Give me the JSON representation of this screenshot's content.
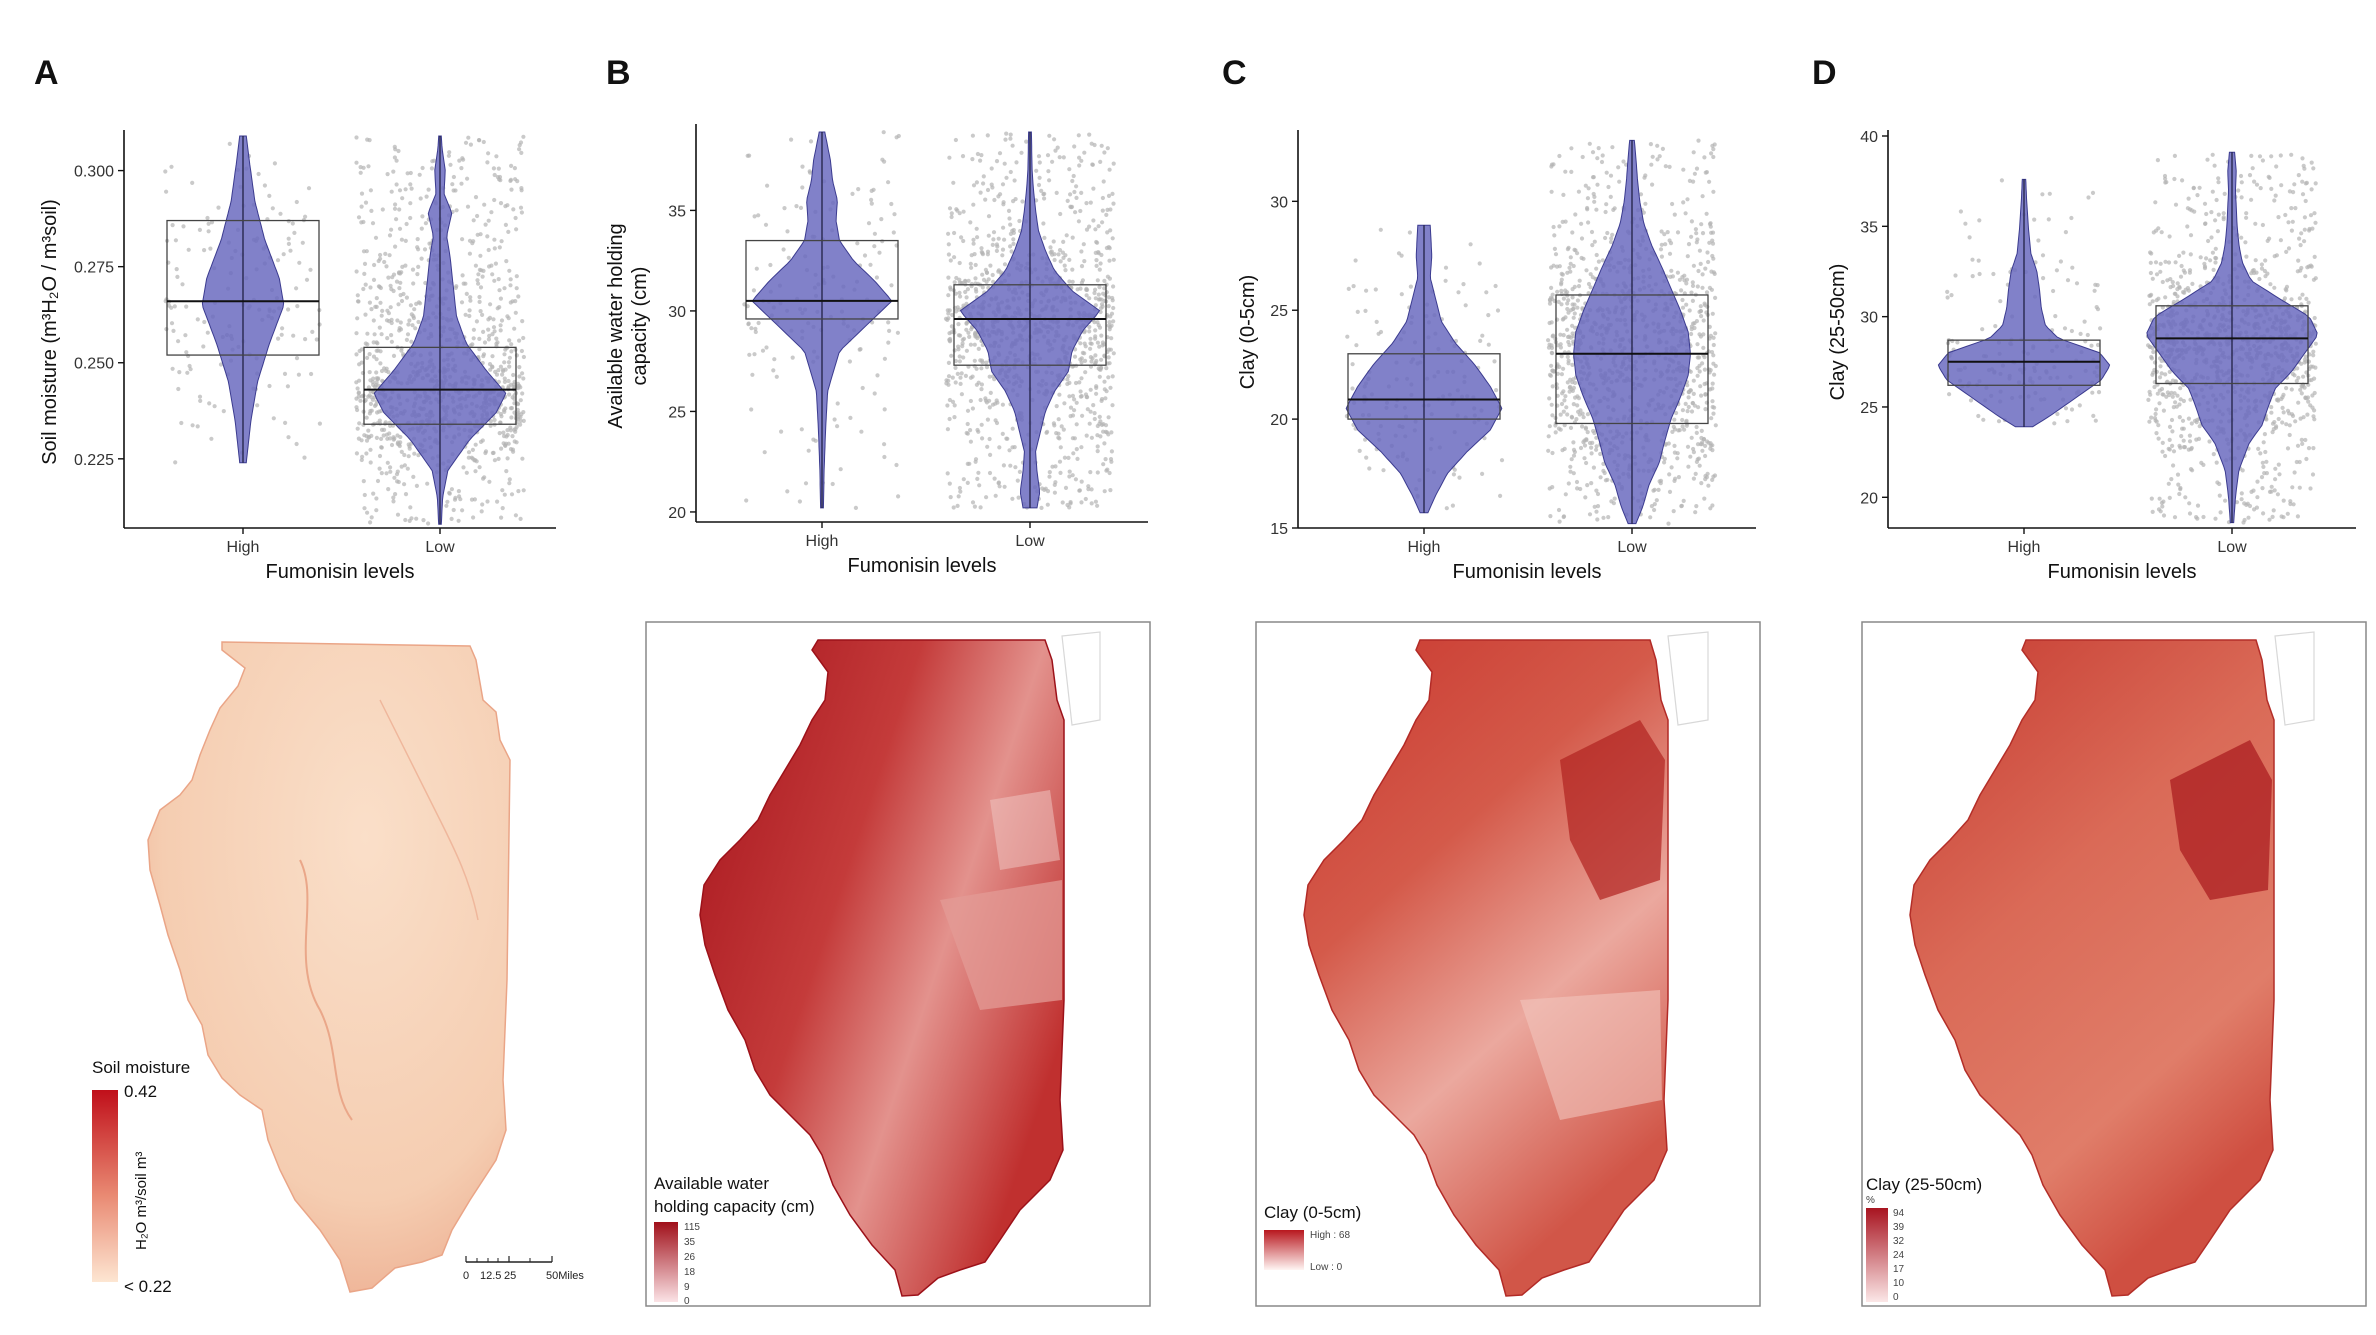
{
  "figure": {
    "panels": [
      "A",
      "B",
      "C",
      "D"
    ]
  },
  "chart_data": [
    {
      "type": "violin",
      "panel": "A",
      "xlabel": "Fumonisin levels",
      "ylabel": "Soil moisture (m³H₂O / m³soil)",
      "categories": [
        "High",
        "Low"
      ],
      "ylim": [
        0.207,
        0.309
      ],
      "yticks": [
        "0.225",
        "0.250",
        "0.275",
        "0.300"
      ],
      "ytick_values": [
        0.225,
        0.25,
        0.275,
        0.3
      ],
      "violin_color": "#6b6bbf",
      "series": [
        {
          "category": "High",
          "min": 0.224,
          "max": 0.309,
          "q1": 0.252,
          "median": 0.266,
          "q3": 0.287,
          "mode": 0.266,
          "profile": [
            [
              0.224,
              0.05
            ],
            [
              0.235,
              0.12
            ],
            [
              0.245,
              0.22
            ],
            [
              0.255,
              0.4
            ],
            [
              0.265,
              0.62
            ],
            [
              0.272,
              0.55
            ],
            [
              0.282,
              0.33
            ],
            [
              0.292,
              0.18
            ],
            [
              0.302,
              0.1
            ],
            [
              0.309,
              0.05
            ]
          ]
        },
        {
          "category": "Low",
          "min": 0.208,
          "max": 0.309,
          "q1": 0.234,
          "median": 0.243,
          "q3": 0.254,
          "mode": 0.242,
          "profile": [
            [
              0.208,
              0.02
            ],
            [
              0.215,
              0.04
            ],
            [
              0.222,
              0.12
            ],
            [
              0.23,
              0.45
            ],
            [
              0.237,
              0.85
            ],
            [
              0.242,
              1.0
            ],
            [
              0.248,
              0.7
            ],
            [
              0.255,
              0.4
            ],
            [
              0.262,
              0.25
            ],
            [
              0.27,
              0.2
            ],
            [
              0.278,
              0.15
            ],
            [
              0.283,
              0.1
            ],
            [
              0.289,
              0.18
            ],
            [
              0.294,
              0.06
            ],
            [
              0.3,
              0.08
            ],
            [
              0.306,
              0.03
            ],
            [
              0.309,
              0.02
            ]
          ]
        }
      ]
    },
    {
      "type": "violin",
      "panel": "B",
      "xlabel": "Fumonisin levels",
      "ylabel": "Available water holding capacity (cm)",
      "ylabel_lines": [
        "Available water holding",
        "capacity (cm)"
      ],
      "categories": [
        "High",
        "Low"
      ],
      "ylim": [
        19.5,
        39.0
      ],
      "yticks": [
        "20",
        "25",
        "30",
        "35"
      ],
      "ytick_values": [
        20,
        25,
        30,
        35
      ],
      "violin_color": "#6b6bbf",
      "series": [
        {
          "category": "High",
          "min": 20.2,
          "max": 38.9,
          "q1": 29.6,
          "median": 30.5,
          "q3": 33.5,
          "mode": 30.5,
          "profile": [
            [
              20.2,
              0.02
            ],
            [
              22,
              0.03
            ],
            [
              24,
              0.05
            ],
            [
              26,
              0.08
            ],
            [
              28,
              0.25
            ],
            [
              29.5,
              0.7
            ],
            [
              30.5,
              1.0
            ],
            [
              31.5,
              0.75
            ],
            [
              32.5,
              0.45
            ],
            [
              33.5,
              0.25
            ],
            [
              34.5,
              0.2
            ],
            [
              35.5,
              0.22
            ],
            [
              36.5,
              0.15
            ],
            [
              37.5,
              0.12
            ],
            [
              38.9,
              0.04
            ]
          ]
        },
        {
          "category": "Low",
          "min": 20.2,
          "max": 38.9,
          "q1": 27.3,
          "median": 29.6,
          "q3": 31.3,
          "mode": 30.0,
          "profile": [
            [
              20.2,
              0.1
            ],
            [
              21,
              0.14
            ],
            [
              22,
              0.1
            ],
            [
              23,
              0.08
            ],
            [
              24,
              0.15
            ],
            [
              25,
              0.22
            ],
            [
              26,
              0.35
            ],
            [
              27,
              0.55
            ],
            [
              28,
              0.6
            ],
            [
              29,
              0.75
            ],
            [
              30,
              1.0
            ],
            [
              31,
              0.6
            ],
            [
              32,
              0.35
            ],
            [
              33,
              0.22
            ],
            [
              34,
              0.12
            ],
            [
              35,
              0.08
            ],
            [
              36,
              0.05
            ],
            [
              37,
              0.03
            ],
            [
              38.9,
              0.02
            ]
          ]
        }
      ]
    },
    {
      "type": "violin",
      "panel": "C",
      "xlabel": "Fumonisin levels",
      "ylabel": "Clay (0-5cm)",
      "categories": [
        "High",
        "Low"
      ],
      "ylim": [
        15.0,
        33.0
      ],
      "yticks": [
        "15",
        "20",
        "25",
        "30"
      ],
      "ytick_values": [
        15,
        20,
        25,
        30
      ],
      "violin_color": "#6b6bbf",
      "series": [
        {
          "category": "High",
          "min": 15.7,
          "max": 28.9,
          "q1": 20.0,
          "median": 20.9,
          "q3": 23.0,
          "mode": 21.0,
          "profile": [
            [
              15.7,
              0.05
            ],
            [
              16.5,
              0.15
            ],
            [
              17.5,
              0.3
            ],
            [
              18.5,
              0.55
            ],
            [
              19.5,
              0.85
            ],
            [
              20.5,
              1.0
            ],
            [
              21.5,
              0.85
            ],
            [
              22.5,
              0.65
            ],
            [
              23.5,
              0.4
            ],
            [
              24.5,
              0.22
            ],
            [
              25.5,
              0.15
            ],
            [
              26.5,
              0.08
            ],
            [
              27.5,
              0.1
            ],
            [
              28.9,
              0.08
            ]
          ]
        },
        {
          "category": "Low",
          "min": 15.2,
          "max": 32.8,
          "q1": 19.8,
          "median": 23.0,
          "q3": 25.7,
          "mode": 23.0,
          "profile": [
            [
              15.2,
              0.05
            ],
            [
              16,
              0.14
            ],
            [
              17,
              0.22
            ],
            [
              18,
              0.35
            ],
            [
              19,
              0.42
            ],
            [
              20,
              0.5
            ],
            [
              21,
              0.62
            ],
            [
              22,
              0.72
            ],
            [
              23,
              0.75
            ],
            [
              24,
              0.72
            ],
            [
              25,
              0.62
            ],
            [
              26,
              0.5
            ],
            [
              27,
              0.38
            ],
            [
              28,
              0.25
            ],
            [
              29,
              0.15
            ],
            [
              30,
              0.1
            ],
            [
              31,
              0.07
            ],
            [
              32,
              0.05
            ],
            [
              32.8,
              0.03
            ]
          ]
        }
      ]
    },
    {
      "type": "violin",
      "panel": "D",
      "xlabel": "Fumonisin levels",
      "ylabel": "Clay (25-50cm)",
      "categories": [
        "High",
        "Low"
      ],
      "ylim": [
        18.3,
        40.0
      ],
      "yticks": [
        "20",
        "25",
        "30",
        "35",
        "40"
      ],
      "ytick_values": [
        20,
        25,
        30,
        35,
        40
      ],
      "violin_color": "#6b6bbf",
      "series": [
        {
          "category": "High",
          "min": 23.9,
          "max": 37.6,
          "q1": 26.2,
          "median": 27.5,
          "q3": 28.7,
          "mode": 27.3,
          "profile": [
            [
              23.9,
              0.1
            ],
            [
              24.5,
              0.3
            ],
            [
              25.5,
              0.6
            ],
            [
              26.5,
              0.9
            ],
            [
              27.3,
              1.0
            ],
            [
              28,
              0.88
            ],
            [
              28.8,
              0.4
            ],
            [
              29.5,
              0.25
            ],
            [
              30.5,
              0.2
            ],
            [
              31.5,
              0.18
            ],
            [
              32.5,
              0.15
            ],
            [
              33.5,
              0.08
            ],
            [
              35,
              0.05
            ],
            [
              36.5,
              0.03
            ],
            [
              37.6,
              0.02
            ]
          ]
        },
        {
          "category": "Low",
          "min": 18.6,
          "max": 39.1,
          "q1": 26.3,
          "median": 28.8,
          "q3": 30.6,
          "mode": 29.0,
          "profile": [
            [
              18.6,
              0.02
            ],
            [
              20,
              0.04
            ],
            [
              21.5,
              0.08
            ],
            [
              23,
              0.2
            ],
            [
              24,
              0.35
            ],
            [
              25,
              0.42
            ],
            [
              26,
              0.5
            ],
            [
              27,
              0.7
            ],
            [
              28,
              0.85
            ],
            [
              29,
              1.0
            ],
            [
              30,
              0.9
            ],
            [
              31,
              0.55
            ],
            [
              32,
              0.22
            ],
            [
              33,
              0.12
            ],
            [
              34,
              0.08
            ],
            [
              35,
              0.06
            ],
            [
              36,
              0.05
            ],
            [
              37,
              0.04
            ],
            [
              38,
              0.05
            ],
            [
              39.1,
              0.03
            ]
          ]
        }
      ]
    }
  ],
  "maps": [
    {
      "panel": "A",
      "legend": {
        "title": "Soil moisture",
        "max_label": "0.42",
        "min_label": "< 0.22",
        "unit_label": "H₂O m³/soil m³"
      },
      "scale_bar": {
        "labels": [
          "0",
          "12.5",
          "25",
          "50Miles"
        ]
      },
      "colors": {
        "low": "#fbe6d5",
        "high": "#c00f1a",
        "fill": "#f5cdb3"
      },
      "framed": false
    },
    {
      "panel": "B",
      "legend": {
        "title_lines": [
          "Available water",
          "holding capacity (cm)"
        ],
        "values": [
          "115",
          "35",
          "26",
          "18",
          "9",
          "0"
        ]
      },
      "colors": {
        "low": "#fbe0e3",
        "high": "#a0101a",
        "fill": "#c0242a"
      },
      "framed": true
    },
    {
      "panel": "C",
      "legend": {
        "title": "Clay (0-5cm)",
        "high_label": "High : 68",
        "low_label": "Low : 0"
      },
      "colors": {
        "low": "#fff4f2",
        "high": "#b8171e",
        "fill": "#d6604f"
      },
      "framed": true
    },
    {
      "panel": "D",
      "legend": {
        "title": "Clay (25-50cm)",
        "unit": "%",
        "values": [
          "94",
          "39",
          "32",
          "24",
          "17",
          "10",
          "0"
        ]
      },
      "colors": {
        "low": "#fbe3e3",
        "high": "#a81420",
        "fill": "#d9624f"
      },
      "framed": true
    }
  ]
}
